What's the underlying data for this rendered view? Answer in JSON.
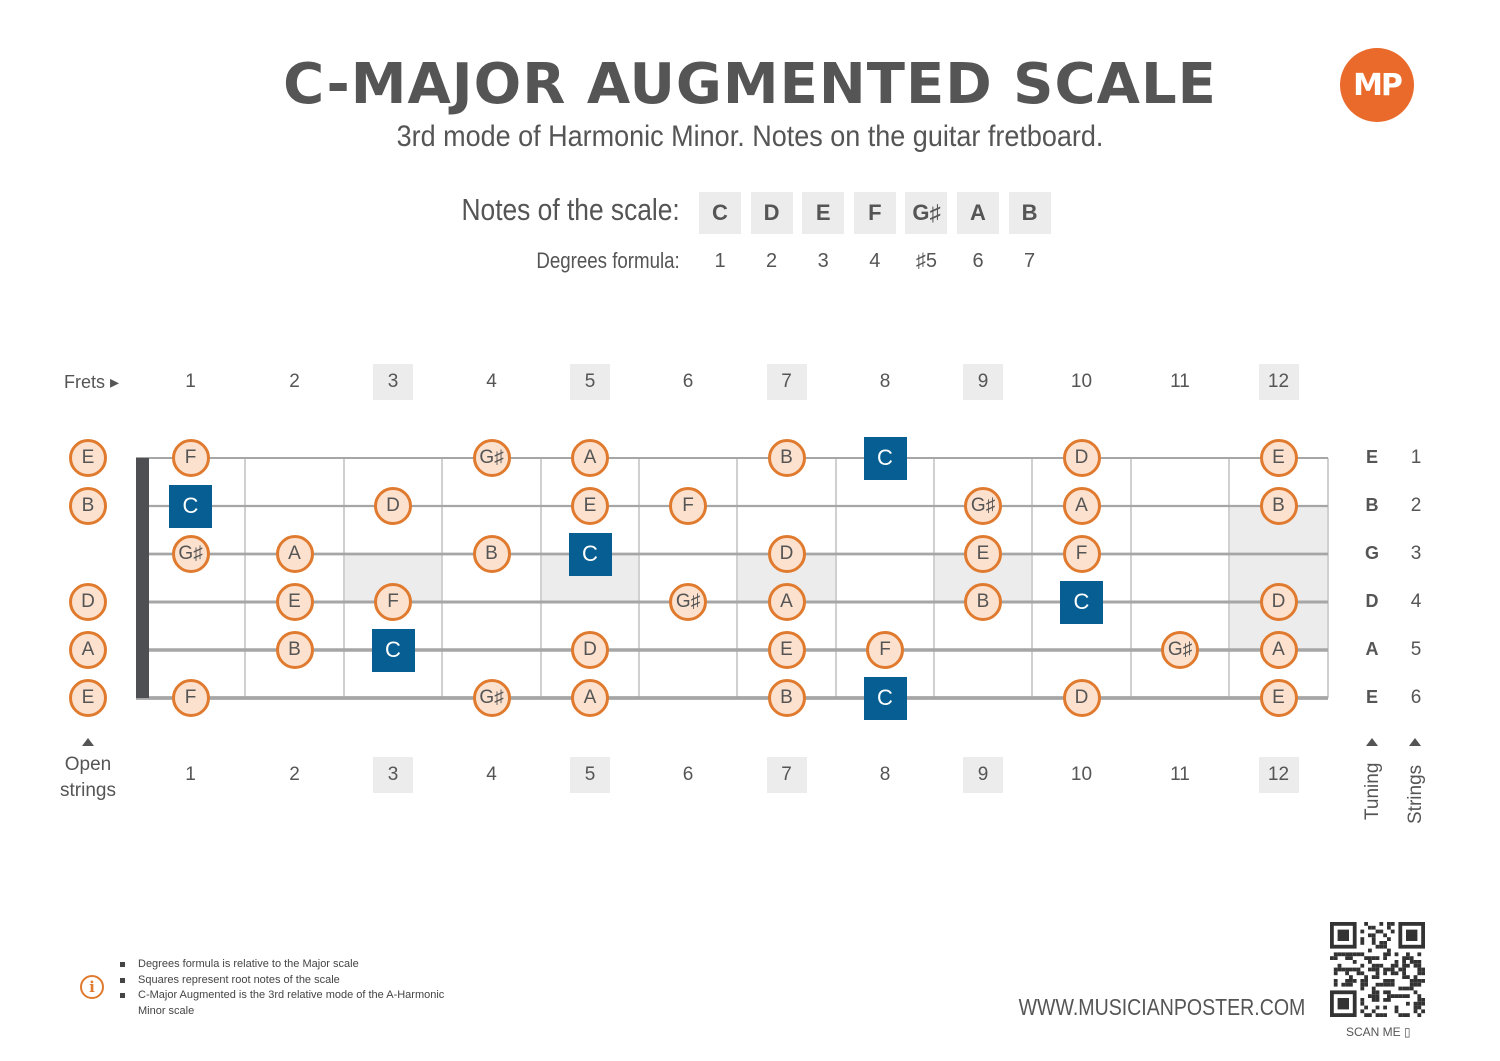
{
  "title": "C-MAJOR AUGMENTED SCALE",
  "subtitle": "3rd mode of Harmonic Minor. Notes on the guitar fretboard.",
  "logo_text": "MP",
  "scale": {
    "notes_label": "Notes of the scale:",
    "degrees_label": "Degrees formula:",
    "notes": [
      "C",
      "D",
      "E",
      "F",
      "G♯",
      "A",
      "B"
    ],
    "degrees": [
      "1",
      "2",
      "3",
      "4",
      "♯5",
      "6",
      "7"
    ]
  },
  "fretboard": {
    "frets_label": "Frets",
    "fret_numbers": [
      "1",
      "2",
      "3",
      "4",
      "5",
      "6",
      "7",
      "8",
      "9",
      "10",
      "11",
      "12"
    ],
    "inlay_frets": [
      3,
      5,
      7,
      9,
      12
    ],
    "double_inlay_fret": 12,
    "open_strings_label": [
      "Open",
      "strings"
    ],
    "tuning_label": "Tuning",
    "strings_label": "Strings",
    "tuning": [
      "E",
      "B",
      "G",
      "D",
      "A",
      "E"
    ],
    "string_numbers": [
      "1",
      "2",
      "3",
      "4",
      "5",
      "6"
    ],
    "open_notes": [
      "E",
      "B",
      "",
      "D",
      "A",
      "E"
    ],
    "root_note": "C",
    "positions": [
      [
        {
          "fret": 1,
          "note": "F"
        },
        {
          "fret": 4,
          "note": "G♯"
        },
        {
          "fret": 5,
          "note": "A"
        },
        {
          "fret": 7,
          "note": "B"
        },
        {
          "fret": 8,
          "note": "C"
        },
        {
          "fret": 10,
          "note": "D"
        },
        {
          "fret": 12,
          "note": "E"
        }
      ],
      [
        {
          "fret": 1,
          "note": "C"
        },
        {
          "fret": 3,
          "note": "D"
        },
        {
          "fret": 5,
          "note": "E"
        },
        {
          "fret": 6,
          "note": "F"
        },
        {
          "fret": 9,
          "note": "G♯"
        },
        {
          "fret": 10,
          "note": "A"
        },
        {
          "fret": 12,
          "note": "B"
        }
      ],
      [
        {
          "fret": 1,
          "note": "G♯"
        },
        {
          "fret": 2,
          "note": "A"
        },
        {
          "fret": 4,
          "note": "B"
        },
        {
          "fret": 5,
          "note": "C"
        },
        {
          "fret": 7,
          "note": "D"
        },
        {
          "fret": 9,
          "note": "E"
        },
        {
          "fret": 10,
          "note": "F"
        }
      ],
      [
        {
          "fret": 2,
          "note": "E"
        },
        {
          "fret": 3,
          "note": "F"
        },
        {
          "fret": 6,
          "note": "G♯"
        },
        {
          "fret": 7,
          "note": "A"
        },
        {
          "fret": 9,
          "note": "B"
        },
        {
          "fret": 10,
          "note": "C"
        },
        {
          "fret": 12,
          "note": "D"
        }
      ],
      [
        {
          "fret": 2,
          "note": "B"
        },
        {
          "fret": 3,
          "note": "C"
        },
        {
          "fret": 5,
          "note": "D"
        },
        {
          "fret": 7,
          "note": "E"
        },
        {
          "fret": 8,
          "note": "F"
        },
        {
          "fret": 11,
          "note": "G♯"
        },
        {
          "fret": 12,
          "note": "A"
        }
      ],
      [
        {
          "fret": 1,
          "note": "F"
        },
        {
          "fret": 4,
          "note": "G♯"
        },
        {
          "fret": 5,
          "note": "A"
        },
        {
          "fret": 7,
          "note": "B"
        },
        {
          "fret": 8,
          "note": "C"
        },
        {
          "fret": 10,
          "note": "D"
        },
        {
          "fret": 12,
          "note": "E"
        }
      ]
    ]
  },
  "colors": {
    "text": "#555555",
    "accent": "#e07a2e",
    "note_fill": "#fbe1ce",
    "root_fill": "#075e92",
    "inlay": "#ececec",
    "string": "#a6a6a6",
    "fret_wire": "#d0d0d0",
    "nut": "#4d4f53"
  },
  "info_icon": "info-icon",
  "notes_list": [
    "Degrees formula is relative to the Major scale",
    "Squares represent root notes of the scale",
    "C-Major Augmented is the 3rd relative mode of the A-Harmonic Minor scale"
  ],
  "website": "WWW.MUSICIANPOSTER.COM",
  "scan_me": "SCAN ME"
}
